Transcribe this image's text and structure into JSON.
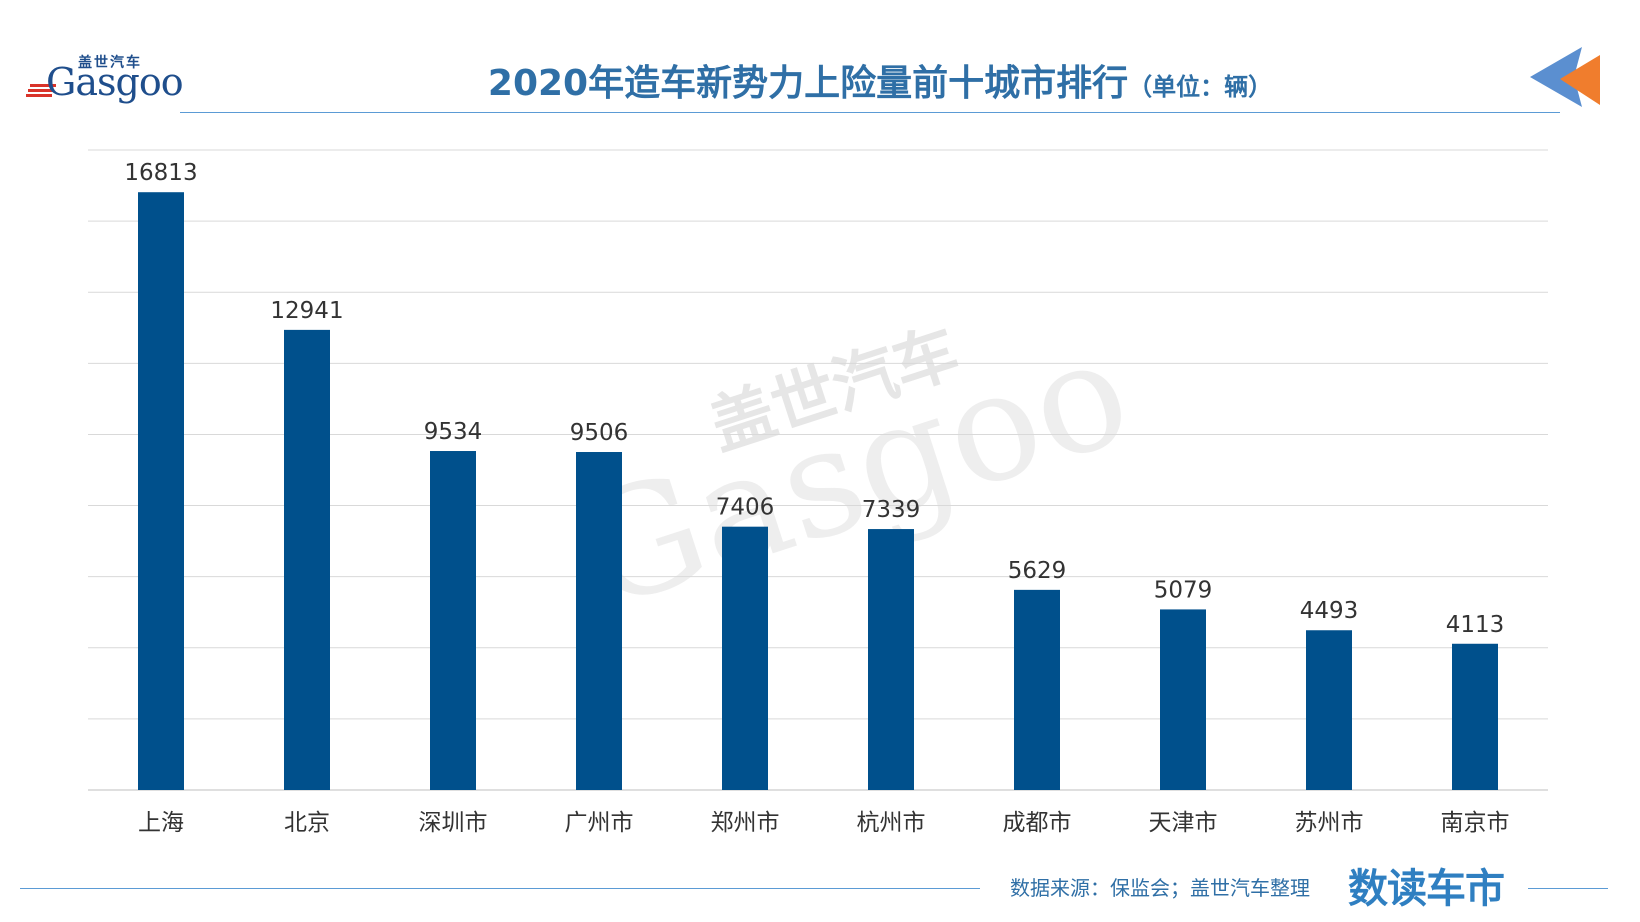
{
  "header": {
    "logo_cn": "盖世汽车",
    "logo_en": "Gasgoo",
    "title": "2020年造车新势力上险量前十城市排行",
    "unit": "（单位：辆）"
  },
  "footer": {
    "source": "数据来源：保监会；盖世汽车整理",
    "brand": "数读车市"
  },
  "watermark": {
    "cn": "盖世汽车",
    "en": "Gasgoo"
  },
  "colors": {
    "bar": "#00508c",
    "accent_blue": "#5b9bd5",
    "accent_orange": "#f07d2d",
    "title": "#2f6fa6",
    "grid": "#d9d9d9"
  },
  "chart_data": {
    "type": "bar",
    "categories": [
      "上海",
      "北京",
      "深圳市",
      "广州市",
      "郑州市",
      "杭州市",
      "成都市",
      "天津市",
      "苏州市",
      "南京市"
    ],
    "values": [
      16813,
      12941,
      9534,
      9506,
      7406,
      7339,
      5629,
      5079,
      4493,
      4113
    ],
    "data_labels": [
      "16813",
      "12941",
      "9534",
      "9506",
      "7406",
      "7339",
      "5629",
      "5079",
      "4493",
      "4113"
    ],
    "title": "2020年造车新势力上险量前十城市排行",
    "unit": "（单位：辆）",
    "xlabel": "",
    "ylabel": "",
    "ylim": [
      0,
      18000
    ],
    "grid": true,
    "legend": "none"
  }
}
